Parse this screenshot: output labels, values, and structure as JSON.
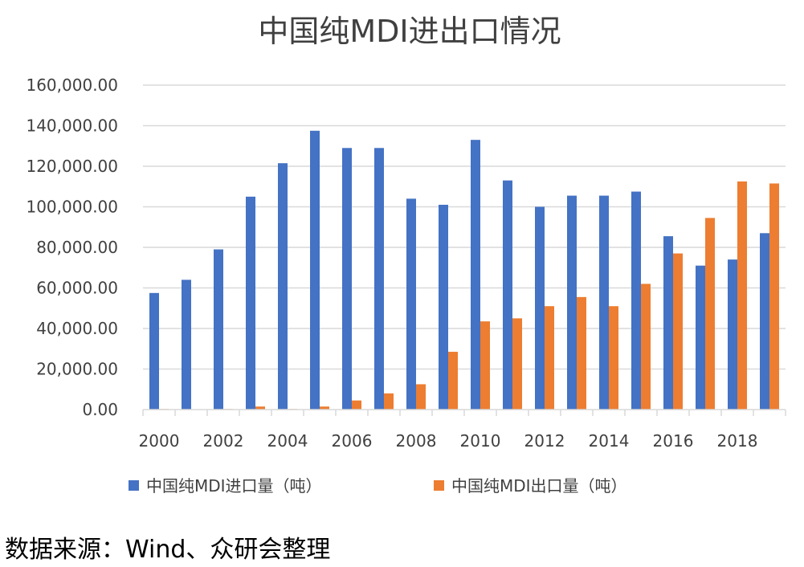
{
  "chart_data": {
    "type": "bar",
    "title": "中国纯MDI进出口情况",
    "categories": [
      "2000",
      "2001",
      "2002",
      "2003",
      "2004",
      "2005",
      "2006",
      "2007",
      "2008",
      "2009",
      "2010",
      "2011",
      "2012",
      "2013",
      "2014",
      "2015",
      "2016",
      "2017",
      "2018",
      "2019"
    ],
    "x_tick_labels": [
      "2000",
      "2002",
      "2004",
      "2006",
      "2008",
      "2010",
      "2012",
      "2014",
      "2016",
      "2018"
    ],
    "y_tick_labels": [
      "0.00",
      "20,000.00",
      "40,000.00",
      "60,000.00",
      "80,000.00",
      "100,000.00",
      "120,000.00",
      "140,000.00",
      "160,000.00"
    ],
    "ylim": [
      0,
      160000
    ],
    "grid": true,
    "legend_position": "bottom",
    "series": [
      {
        "name": "中国纯MDI进口量（吨）",
        "color": "#4472c4",
        "values": [
          57500,
          64000,
          79000,
          105000,
          121500,
          137500,
          129000,
          129000,
          104000,
          101000,
          133000,
          113000,
          100000,
          105500,
          105500,
          107500,
          85500,
          71000,
          74000,
          87000
        ]
      },
      {
        "name": "中国纯MDI出口量（吨）",
        "color": "#ed7d31",
        "values": [
          300,
          200,
          300,
          1500,
          300,
          1500,
          4500,
          8000,
          12500,
          28500,
          43500,
          45000,
          51000,
          55500,
          51000,
          62000,
          77000,
          94500,
          112500,
          111500
        ]
      }
    ]
  },
  "source": "数据来源：Wind、众研会整理"
}
